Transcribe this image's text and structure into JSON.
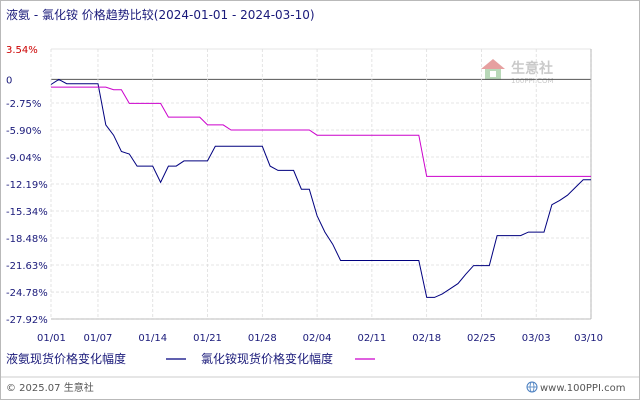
{
  "chart_data": {
    "type": "line",
    "title": "液氨 - 氯化铵 价格趋势比较(2024-01-01 - 2024-03-10)",
    "x": [
      "2024-01-01",
      "2024-01-02",
      "2024-01-03",
      "2024-01-04",
      "2024-01-05",
      "2024-01-06",
      "2024-01-07",
      "2024-01-08",
      "2024-01-09",
      "2024-01-10",
      "2024-01-11",
      "2024-01-12",
      "2024-01-13",
      "2024-01-14",
      "2024-01-15",
      "2024-01-16",
      "2024-01-17",
      "2024-01-18",
      "2024-01-19",
      "2024-01-20",
      "2024-01-21",
      "2024-01-22",
      "2024-01-23",
      "2024-01-24",
      "2024-01-25",
      "2024-01-26",
      "2024-01-27",
      "2024-01-28",
      "2024-01-29",
      "2024-01-30",
      "2024-01-31",
      "2024-02-01",
      "2024-02-02",
      "2024-02-03",
      "2024-02-04",
      "2024-02-05",
      "2024-02-06",
      "2024-02-07",
      "2024-02-08",
      "2024-02-09",
      "2024-02-10",
      "2024-02-11",
      "2024-02-12",
      "2024-02-13",
      "2024-02-14",
      "2024-02-15",
      "2024-02-16",
      "2024-02-17",
      "2024-02-18",
      "2024-02-19",
      "2024-02-20",
      "2024-02-21",
      "2024-02-22",
      "2024-02-23",
      "2024-02-24",
      "2024-02-25",
      "2024-02-26",
      "2024-02-27",
      "2024-02-28",
      "2024-02-29",
      "2024-03-01",
      "2024-03-02",
      "2024-03-03",
      "2024-03-04",
      "2024-03-05",
      "2024-03-06",
      "2024-03-07",
      "2024-03-08",
      "2024-03-09",
      "2024-03-10"
    ],
    "series": [
      {
        "name": "液氨现货价格变化幅度",
        "color": "#00007f",
        "values": [
          -0.6,
          0.0,
          -0.5,
          -0.5,
          -0.5,
          -0.5,
          -0.5,
          -5.3,
          -6.5,
          -8.4,
          -8.7,
          -10.1,
          -10.1,
          -10.1,
          -12.0,
          -10.1,
          -10.1,
          -9.5,
          -9.5,
          -9.5,
          -9.5,
          -7.8,
          -7.8,
          -7.8,
          -7.8,
          -7.8,
          -7.8,
          -7.8,
          -10.1,
          -10.6,
          -10.6,
          -10.6,
          -12.8,
          -12.8,
          -15.9,
          -17.8,
          -19.2,
          -21.1,
          -21.1,
          -21.1,
          -21.1,
          -21.1,
          -21.1,
          -21.1,
          -21.1,
          -21.1,
          -21.1,
          -21.1,
          -25.4,
          -25.4,
          -25.0,
          -24.4,
          -23.8,
          -22.7,
          -21.7,
          -21.7,
          -21.7,
          -18.2,
          -18.2,
          -18.2,
          -18.2,
          -17.8,
          -17.8,
          -17.8,
          -14.6,
          -14.1,
          -13.5,
          -12.6,
          -11.7,
          -11.7
        ]
      },
      {
        "name": "氯化铵现货价格变化幅度",
        "color": "#cc00cc",
        "values": [
          -0.9,
          -0.9,
          -0.9,
          -0.9,
          -0.9,
          -0.9,
          -0.9,
          -0.9,
          -1.2,
          -1.2,
          -2.8,
          -2.8,
          -2.8,
          -2.8,
          -2.8,
          -4.4,
          -4.4,
          -4.4,
          -4.4,
          -4.4,
          -5.3,
          -5.3,
          -5.3,
          -5.9,
          -5.9,
          -5.9,
          -5.9,
          -5.9,
          -5.9,
          -5.9,
          -5.9,
          -5.9,
          -5.9,
          -5.9,
          -6.5,
          -6.5,
          -6.5,
          -6.5,
          -6.5,
          -6.5,
          -6.5,
          -6.5,
          -6.5,
          -6.5,
          -6.5,
          -6.5,
          -6.5,
          -6.5,
          -11.3,
          -11.3,
          -11.3,
          -11.3,
          -11.3,
          -11.3,
          -11.3,
          -11.3,
          -11.3,
          -11.3,
          -11.3,
          -11.3,
          -11.3,
          -11.3,
          -11.3,
          -11.3,
          -11.3,
          -11.3,
          -11.3,
          -11.3,
          -11.3,
          -11.3
        ]
      }
    ],
    "ylim": [
      -27.92,
      3.54
    ],
    "yticks": [
      "3.54%",
      "0",
      "-2.75%",
      "-5.90%",
      "-9.04%",
      "-12.19%",
      "-15.34%",
      "-18.48%",
      "-21.63%",
      "-24.78%",
      "-27.92%"
    ],
    "ytick_values": [
      3.54,
      0,
      -2.75,
      -5.9,
      -9.04,
      -12.19,
      -15.34,
      -18.48,
      -21.63,
      -24.78,
      -27.92
    ],
    "xticks": [
      "01/01",
      "01/07",
      "01/14",
      "01/21",
      "01/28",
      "02/04",
      "02/11",
      "02/18",
      "02/25",
      "03/03",
      "03/10"
    ],
    "xtick_index": [
      0,
      6,
      13,
      20,
      27,
      34,
      41,
      48,
      55,
      62,
      69
    ],
    "grid": true,
    "legend_position": "bottom"
  },
  "watermark": {
    "name": "生意社",
    "site": "100PPI.COM"
  },
  "footer": {
    "copyright": "© 2025.07 生意社",
    "site": "www.100PPI.com"
  },
  "colors": {
    "axis_label": "#1a1a7a",
    "top_tick": "#cc0000",
    "grid": "#dddddd"
  }
}
